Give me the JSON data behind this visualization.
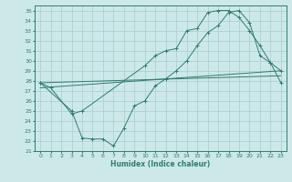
{
  "xlabel": "Humidex (Indice chaleur)",
  "bg_color": "#cde8e8",
  "grid_color": "#a8cccc",
  "line_color": "#2e7d6e",
  "xlim": [
    -0.5,
    23.5
  ],
  "ylim": [
    21,
    35.5
  ],
  "xticks": [
    0,
    1,
    2,
    3,
    4,
    5,
    6,
    7,
    8,
    9,
    10,
    11,
    12,
    13,
    14,
    15,
    16,
    17,
    18,
    19,
    20,
    21,
    22,
    23
  ],
  "yticks": [
    21,
    22,
    23,
    24,
    25,
    26,
    27,
    28,
    29,
    30,
    31,
    32,
    33,
    34,
    35
  ],
  "line1_x": [
    0,
    1,
    3,
    4,
    10,
    11,
    12,
    13,
    14,
    15,
    16,
    17,
    18,
    19,
    20,
    21,
    22,
    23
  ],
  "line1_y": [
    27.8,
    27.3,
    24.7,
    25.0,
    29.5,
    30.5,
    31.0,
    31.2,
    33.0,
    33.2,
    34.8,
    35.0,
    35.0,
    34.3,
    33.0,
    31.5,
    29.8,
    29.0
  ],
  "line2_x": [
    0,
    23
  ],
  "line2_y": [
    27.3,
    29.0
  ],
  "line3_x": [
    0,
    3,
    4,
    5,
    6,
    7,
    8,
    9,
    10,
    11,
    12,
    13,
    14,
    15,
    16,
    17,
    18,
    19,
    20,
    21,
    22,
    23
  ],
  "line3_y": [
    27.8,
    25.0,
    22.3,
    22.2,
    22.2,
    21.5,
    23.3,
    25.5,
    26.0,
    27.5,
    28.2,
    29.0,
    30.0,
    31.5,
    32.8,
    33.5,
    34.8,
    35.0,
    33.8,
    30.5,
    29.8,
    27.8
  ],
  "line4_x": [
    0,
    23
  ],
  "line4_y": [
    27.8,
    28.5
  ]
}
